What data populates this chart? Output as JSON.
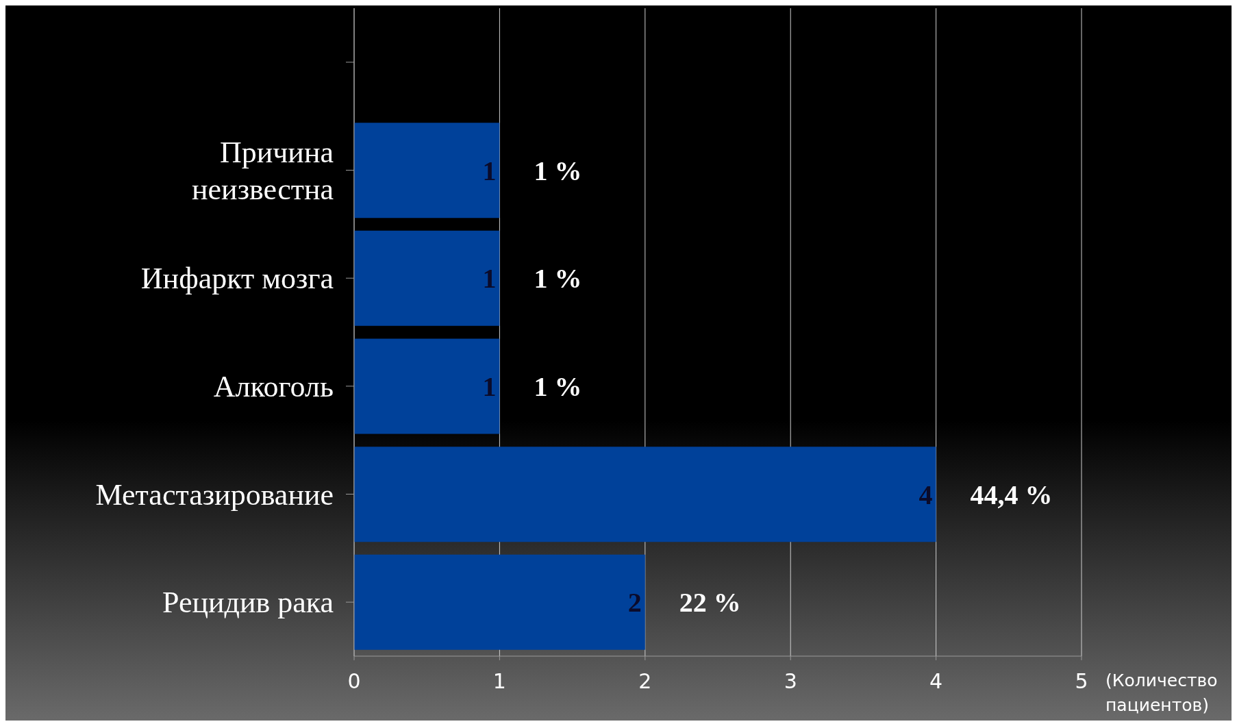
{
  "chart_data": {
    "type": "bar",
    "orientation": "horizontal",
    "categories": [
      null,
      "Причина неизвестна",
      "Инфаркт мозга",
      "Алкоголь",
      "Метастазирование",
      "Рецидив рака"
    ],
    "values": [
      null,
      1,
      1,
      1,
      4,
      2
    ],
    "data_labels": true,
    "annotations": [
      {
        "text": "1 %",
        "x": 1,
        "y": "Причина неизвестна"
      },
      {
        "text": "1 %",
        "x": 1,
        "y": "Инфаркт мозга"
      },
      {
        "text": "1 %",
        "x": 1,
        "y": "Алкоголь"
      },
      {
        "text": "44,4 %",
        "x": 4,
        "y": "Метастазирование"
      },
      {
        "text": "22 %",
        "x": 2,
        "y": "Рецидив рака"
      }
    ],
    "color": "#00419a",
    "xlim": [
      0,
      5
    ],
    "xticks": [
      0,
      1,
      2,
      3,
      4,
      5
    ],
    "xlabel": "(Количество пациентов)",
    "grid": "x"
  }
}
